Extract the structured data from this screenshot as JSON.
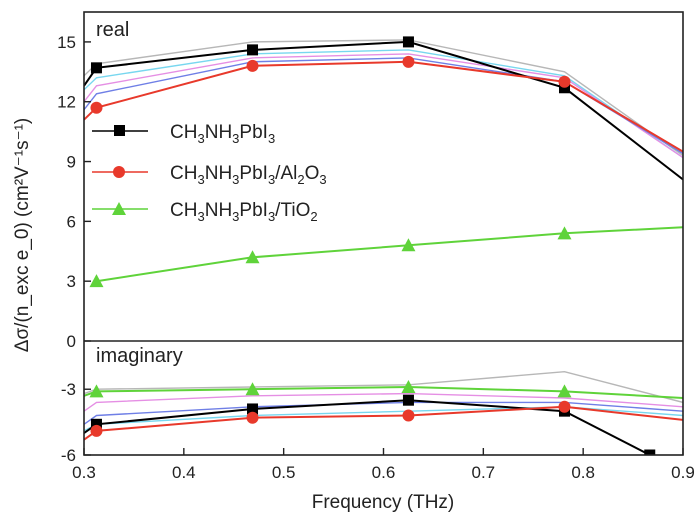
{
  "chart_data": {
    "type": "line",
    "xlabel": "Frequency (THz)",
    "ylabel": "Δσ/(n_exc e_0)  (cm²V⁻¹s⁻¹)",
    "xlim": [
      0.3,
      0.9
    ],
    "x_ticks": [
      "0.3",
      "0.4",
      "0.5",
      "0.6",
      "0.7",
      "0.8",
      "0.9"
    ],
    "grid": false,
    "legend_position": "left",
    "panels": [
      {
        "label": "real",
        "ylim": [
          0,
          16.5
        ],
        "y_ticks": [
          "0",
          "3",
          "6",
          "9",
          "12",
          "15"
        ],
        "series": [
          {
            "name": "CH3NH3PbI3",
            "color": "#000000",
            "marker": "square",
            "x": [
              0.3,
              0.3125,
              0.4688,
              0.625,
              0.7813,
              0.9
            ],
            "y": [
              12.8,
              13.7,
              14.6,
              15.0,
              12.7,
              8.1
            ]
          },
          {
            "name": "CH3NH3PbI3/Al2O3",
            "color": "#e8392b",
            "marker": "circle",
            "x": [
              0.3,
              0.3125,
              0.4688,
              0.625,
              0.7813,
              0.9
            ],
            "y": [
              11.1,
              11.7,
              13.8,
              14.0,
              13.0,
              9.5
            ]
          },
          {
            "name": "CH3NH3PbI3/TiO2",
            "color": "#5fd33a",
            "marker": "triangle",
            "x": [
              0.3125,
              0.4688,
              0.625,
              0.7813,
              0.9
            ],
            "y": [
              3.0,
              4.2,
              4.8,
              5.4,
              5.7
            ]
          }
        ],
        "unlabeled_series": [
          {
            "color": "#b7b7b7",
            "x": [
              0.3,
              0.3125,
              0.4688,
              0.625,
              0.7813,
              0.9
            ],
            "y": [
              13.3,
              13.9,
              15.0,
              15.1,
              13.5,
              9.3
            ]
          },
          {
            "color": "#78d7ef",
            "x": [
              0.3,
              0.3125,
              0.4688,
              0.625,
              0.7813,
              0.9
            ],
            "y": [
              12.6,
              13.2,
              14.4,
              14.6,
              13.3,
              9.2
            ]
          },
          {
            "color": "#e58fe4",
            "x": [
              0.3,
              0.3125,
              0.4688,
              0.625,
              0.7813,
              0.9
            ],
            "y": [
              12.0,
              12.8,
              14.2,
              14.4,
              13.2,
              9.2
            ]
          },
          {
            "color": "#6f7fe6",
            "x": [
              0.3,
              0.3125,
              0.4688,
              0.625,
              0.7813,
              0.9
            ],
            "y": [
              11.6,
              12.4,
              14.0,
              14.2,
              13.0,
              9.4
            ]
          }
        ]
      },
      {
        "label": "imaginary",
        "ylim": [
          -6,
          -0.8
        ],
        "y_ticks": [
          "-3",
          "-6"
        ],
        "series": [
          {
            "name": "CH3NH3PbI3",
            "color": "#000000",
            "marker": "square",
            "x": [
              0.3,
              0.3125,
              0.4688,
              0.625,
              0.7813,
              0.8667
            ],
            "y": [
              -5.0,
              -4.6,
              -3.9,
              -3.5,
              -4.0,
              -6.0
            ]
          },
          {
            "name": "CH3NH3PbI3/Al2O3",
            "color": "#e8392b",
            "marker": "circle",
            "x": [
              0.3,
              0.3125,
              0.4688,
              0.625,
              0.7813,
              0.9
            ],
            "y": [
              -5.3,
              -4.9,
              -4.3,
              -4.2,
              -3.8,
              -4.4
            ]
          },
          {
            "name": "CH3NH3PbI3/TiO2",
            "color": "#5fd33a",
            "marker": "triangle",
            "x": [
              0.3,
              0.3125,
              0.4688,
              0.625,
              0.7813,
              0.9
            ],
            "y": [
              -3.3,
              -3.1,
              -3.0,
              -2.9,
              -3.1,
              -3.4
            ]
          }
        ],
        "unlabeled_series": [
          {
            "color": "#b7b7b7",
            "x": [
              0.3,
              0.3125,
              0.4688,
              0.625,
              0.7813,
              0.9
            ],
            "y": [
              -3.2,
              -3.0,
              -2.9,
              -2.8,
              -2.2,
              -3.6
            ]
          },
          {
            "color": "#e58fe4",
            "x": [
              0.3,
              0.3125,
              0.4688,
              0.625,
              0.7813,
              0.9
            ],
            "y": [
              -4.0,
              -3.6,
              -3.3,
              -3.2,
              -3.4,
              -3.8
            ]
          },
          {
            "color": "#6f7fe6",
            "x": [
              0.3,
              0.3125,
              0.4688,
              0.625,
              0.7813,
              0.9
            ],
            "y": [
              -4.6,
              -4.2,
              -3.8,
              -3.6,
              -3.6,
              -4.0
            ]
          },
          {
            "color": "#78d7ef",
            "x": [
              0.3,
              0.3125,
              0.4688,
              0.625,
              0.7813,
              0.9
            ],
            "y": [
              -4.9,
              -4.6,
              -4.2,
              -4.0,
              -3.8,
              -4.2
            ]
          }
        ]
      }
    ]
  }
}
